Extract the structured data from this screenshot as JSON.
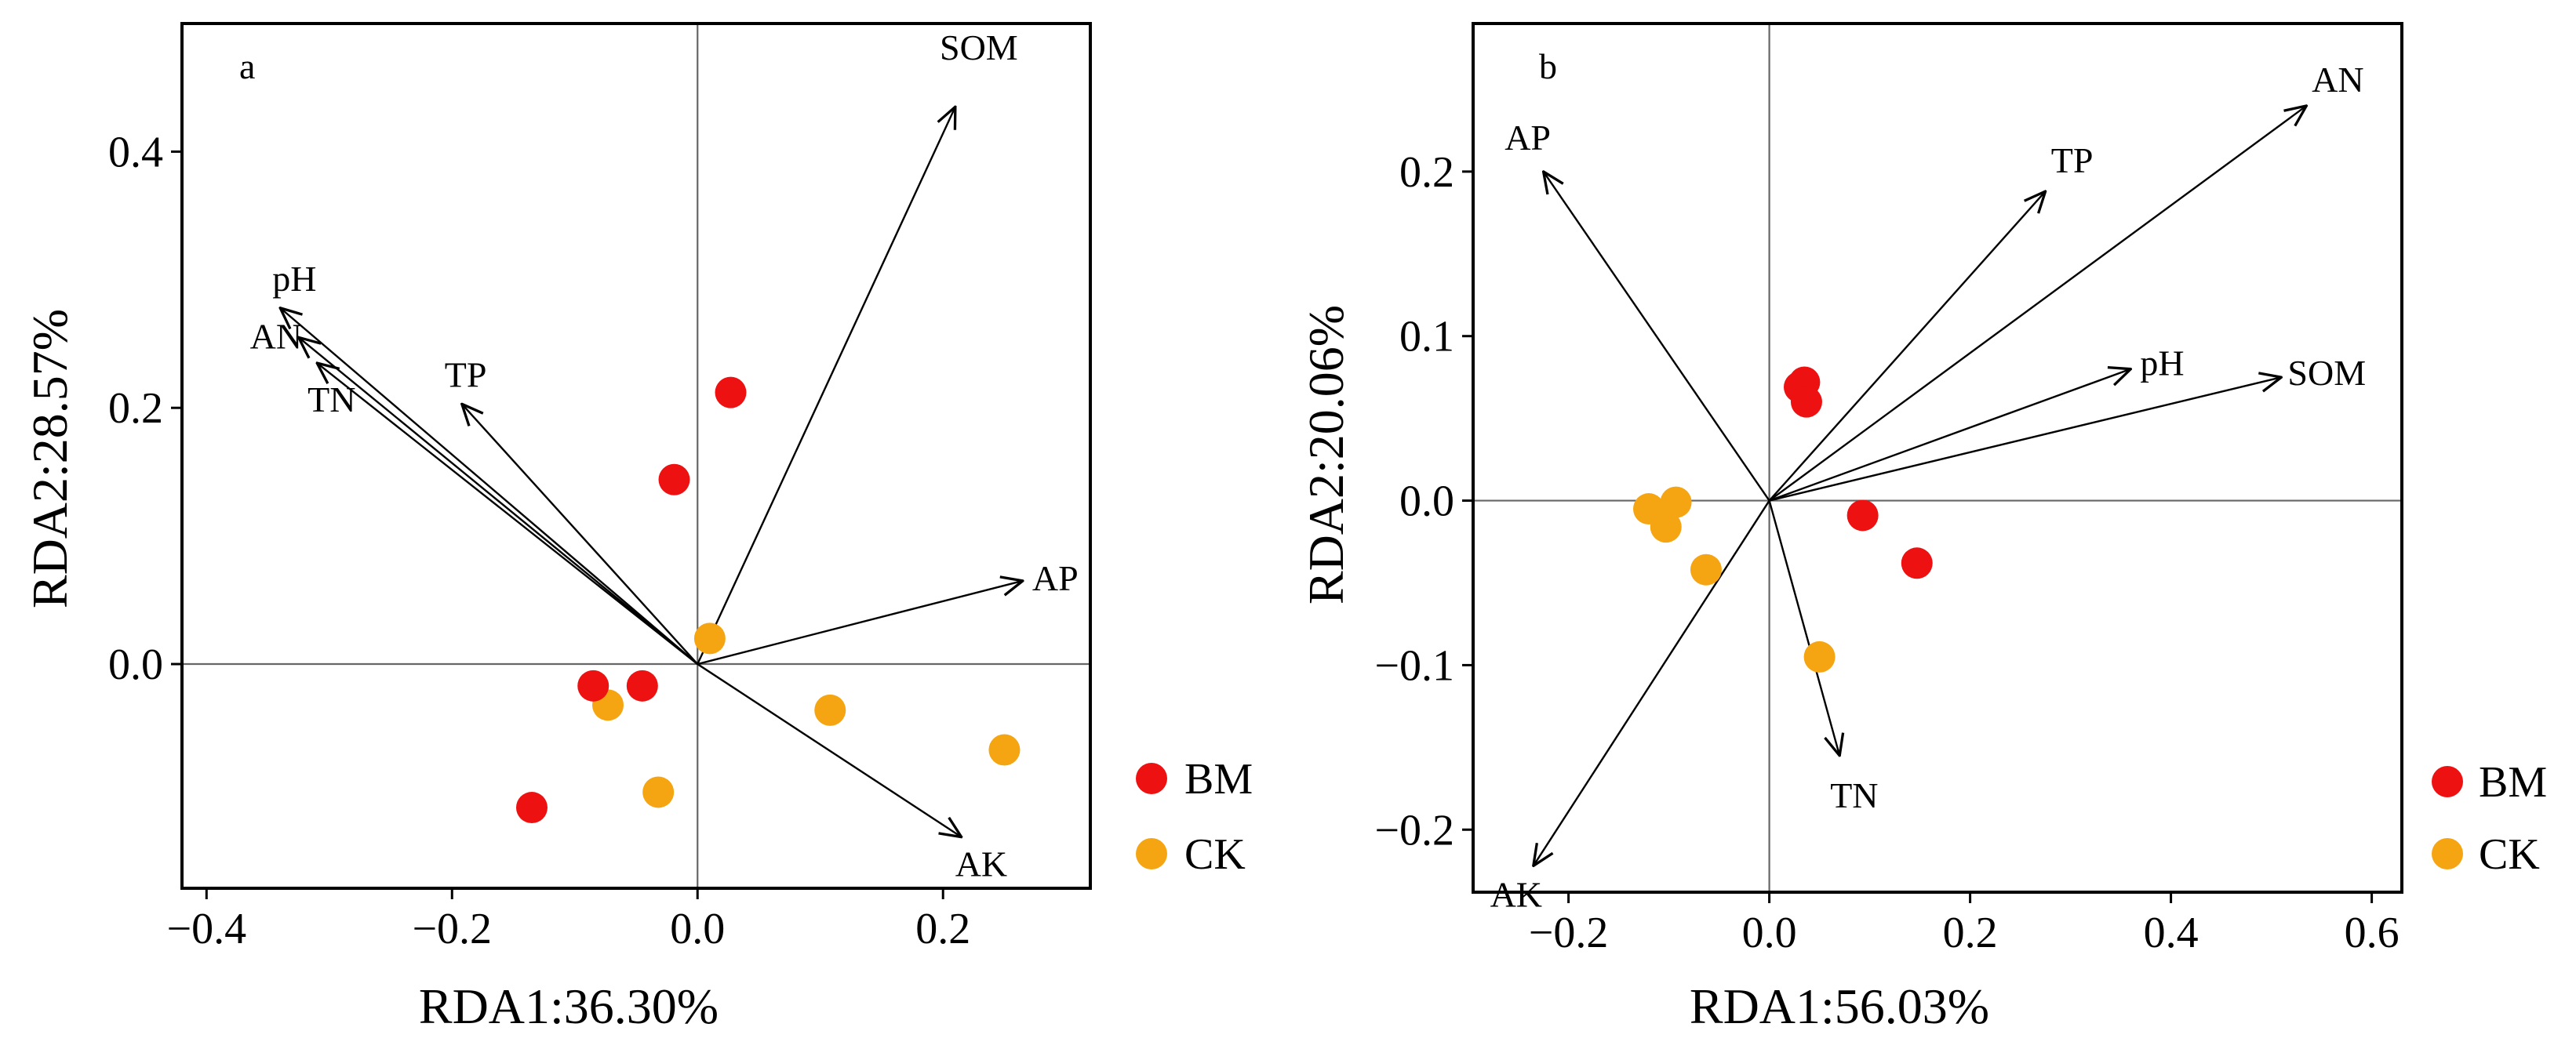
{
  "colors": {
    "BM": "#ee1111",
    "CK": "#f5a512",
    "axis": "#000000",
    "zero_line": "#666666"
  },
  "legend": [
    {
      "group": "BM",
      "label": "BM"
    },
    {
      "group": "CK",
      "label": "CK"
    }
  ],
  "chart_data": [
    {
      "type": "scatter",
      "panel_label": "a",
      "xlabel": "RDA1:36.30%",
      "ylabel": "RDA2:28.57%",
      "xlim": [
        -0.42,
        0.32
      ],
      "ylim": [
        -0.175,
        0.5
      ],
      "xticks": [
        -0.4,
        -0.2,
        0.0,
        0.2
      ],
      "xtick_labels": [
        "−0.4",
        "−0.2",
        "0.0",
        "0.2"
      ],
      "yticks": [
        0.0,
        0.2,
        0.4
      ],
      "ytick_labels": [
        "0.0",
        "0.2",
        "0.4"
      ],
      "series": [
        {
          "name": "BM",
          "points": [
            {
              "x": 0.027,
              "y": 0.212
            },
            {
              "x": -0.019,
              "y": 0.144
            },
            {
              "x": -0.085,
              "y": -0.017
            },
            {
              "x": -0.045,
              "y": -0.017
            },
            {
              "x": -0.135,
              "y": -0.112
            }
          ]
        },
        {
          "name": "CK",
          "points": [
            {
              "x": 0.01,
              "y": 0.02
            },
            {
              "x": -0.073,
              "y": -0.032
            },
            {
              "x": 0.108,
              "y": -0.036
            },
            {
              "x": 0.25,
              "y": -0.067
            },
            {
              "x": -0.032,
              "y": -0.1
            }
          ]
        }
      ],
      "vectors": [
        {
          "label": "SOM",
          "x": 0.21,
          "y": 0.435
        },
        {
          "label": "pH",
          "x": -0.34,
          "y": 0.278
        },
        {
          "label": "AN",
          "x": -0.325,
          "y": 0.255
        },
        {
          "label": "TN",
          "x": -0.31,
          "y": 0.235
        },
        {
          "label": "TP",
          "x": -0.192,
          "y": 0.203
        },
        {
          "label": "AP",
          "x": 0.265,
          "y": 0.065
        },
        {
          "label": "AK",
          "x": 0.215,
          "y": -0.135
        }
      ]
    },
    {
      "type": "scatter",
      "panel_label": "b",
      "xlabel": "RDA1:56.03%",
      "ylabel": "RDA2:20.06%",
      "xlim": [
        -0.295,
        0.63
      ],
      "ylim": [
        -0.238,
        0.29
      ],
      "xticks": [
        -0.2,
        0.0,
        0.2,
        0.4,
        0.6
      ],
      "xtick_labels": [
        "−0.2",
        "0.0",
        "0.2",
        "0.4",
        "0.6"
      ],
      "yticks": [
        -0.2,
        -0.1,
        0.0,
        0.1,
        0.2
      ],
      "ytick_labels": [
        "−0.2",
        "−0.1",
        "0.0",
        "0.1",
        "0.2"
      ],
      "series": [
        {
          "name": "BM",
          "points": [
            {
              "x": 0.03,
              "y": 0.069
            },
            {
              "x": 0.035,
              "y": 0.072
            },
            {
              "x": 0.037,
              "y": 0.06
            },
            {
              "x": 0.093,
              "y": -0.009
            },
            {
              "x": 0.147,
              "y": -0.038
            }
          ]
        },
        {
          "name": "CK",
          "points": [
            {
              "x": -0.12,
              "y": -0.005
            },
            {
              "x": -0.093,
              "y": -0.001
            },
            {
              "x": -0.103,
              "y": -0.016
            },
            {
              "x": -0.063,
              "y": -0.042
            },
            {
              "x": 0.05,
              "y": -0.095
            }
          ]
        }
      ],
      "vectors": [
        {
          "label": "AN",
          "x": 0.535,
          "y": 0.24
        },
        {
          "label": "TP",
          "x": 0.275,
          "y": 0.188
        },
        {
          "label": "AP",
          "x": -0.225,
          "y": 0.2
        },
        {
          "label": "pH",
          "x": 0.36,
          "y": 0.08
        },
        {
          "label": "SOM",
          "x": 0.51,
          "y": 0.075
        },
        {
          "label": "TN",
          "x": 0.07,
          "y": -0.155
        },
        {
          "label": "AK",
          "x": -0.235,
          "y": -0.222
        }
      ]
    }
  ]
}
